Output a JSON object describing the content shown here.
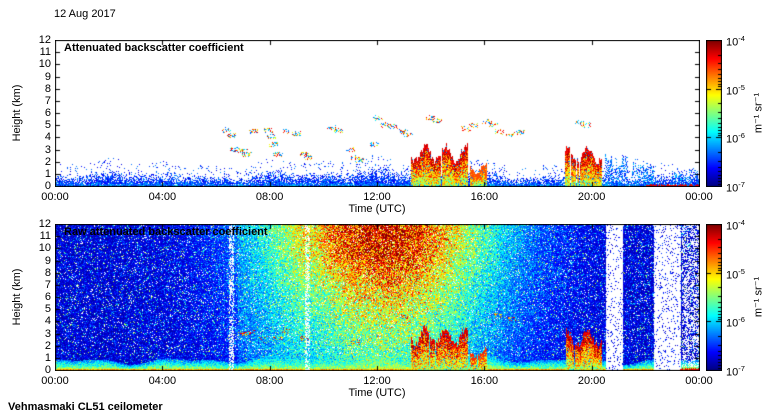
{
  "figure": {
    "date": "12 Aug 2017",
    "credit": "Vehmasmaki CL51 ceilometer",
    "background_color": "#ffffff"
  },
  "colormap": "jet",
  "chart_data": [
    {
      "type": "heatmap",
      "title": "Attenuated backscatter coefficient",
      "xlabel": "Time (UTC)",
      "ylabel": "Height (km)",
      "x_tick_labels": [
        "00:00",
        "04:00",
        "08:00",
        "12:00",
        "16:00",
        "20:00",
        "00:00"
      ],
      "x_range_hours": [
        0,
        24
      ],
      "y_tick_values": [
        0,
        1,
        2,
        3,
        4,
        5,
        6,
        7,
        8,
        9,
        10,
        11,
        12
      ],
      "y_range_km": [
        0,
        12
      ],
      "colorbar": {
        "scale": "log10",
        "tick_exponents": [
          -4,
          -5,
          -6,
          -7
        ],
        "unit": "m⁻¹ sr⁻¹",
        "min": "1e-7",
        "max": "1e-4"
      },
      "features": {
        "boundary_layer": {
          "mean_top_km": 0.9,
          "midday_growth_km": 0.6,
          "early_morning_blob": {
            "center_hour": 2.6,
            "top_km": 1.6
          },
          "typical_log10": -6.4
        },
        "cloud_specks_hour_km": [
          [
            6.4,
            4.6
          ],
          [
            6.55,
            4.15
          ],
          [
            6.7,
            3.0
          ],
          [
            7.0,
            2.9
          ],
          [
            7.15,
            2.6
          ],
          [
            7.4,
            4.5
          ],
          [
            7.95,
            4.6
          ],
          [
            8.05,
            4.05
          ],
          [
            8.15,
            3.4
          ],
          [
            8.3,
            2.6
          ],
          [
            8.55,
            4.5
          ],
          [
            9.0,
            4.3
          ],
          [
            9.3,
            2.6
          ],
          [
            9.45,
            2.35
          ],
          [
            10.3,
            4.8
          ],
          [
            10.55,
            4.6
          ],
          [
            11.0,
            3.0
          ],
          [
            11.2,
            2.3
          ],
          [
            11.35,
            2.1
          ],
          [
            11.9,
            3.4
          ],
          [
            12.05,
            5.6
          ],
          [
            12.3,
            5.0
          ],
          [
            12.6,
            4.9
          ],
          [
            13.0,
            4.45
          ],
          [
            13.15,
            4.2
          ],
          [
            14.0,
            5.6
          ],
          [
            14.25,
            5.35
          ],
          [
            15.3,
            4.7
          ],
          [
            15.6,
            5.0
          ],
          [
            16.1,
            5.3
          ],
          [
            16.35,
            5.1
          ],
          [
            16.55,
            4.45
          ],
          [
            17.0,
            4.2
          ],
          [
            17.35,
            4.4
          ],
          [
            19.55,
            5.2
          ],
          [
            19.8,
            5.0
          ]
        ],
        "precipitation_columns": [
          {
            "hours": [
              13.25,
              15.35
            ],
            "top_km": 3.1,
            "max_log10": -4.1
          },
          {
            "hours": [
              15.45,
              16.05
            ],
            "top_km": 1.7,
            "max_log10": -4.6
          },
          {
            "hours": [
              19.0,
              20.35
            ],
            "top_km": 3.0,
            "max_log10": -4.1
          }
        ],
        "weak_columns": [
          {
            "hours": [
              20.5,
              21.3
            ],
            "top_km": 2.6
          },
          {
            "hours": [
              21.5,
              22.3
            ],
            "top_km": 2.2
          },
          {
            "hours": [
              23.0,
              24.0
            ],
            "top_km": 1.4
          }
        ],
        "surface_high_signal": {
          "hours": [
            22.0,
            24.0
          ],
          "log10": -4.3
        }
      }
    },
    {
      "type": "heatmap",
      "title": "Raw attenuated backscatter coefficient",
      "xlabel": "Time (UTC)",
      "ylabel": "Height (km)",
      "x_tick_labels": [
        "00:00",
        "04:00",
        "08:00",
        "12:00",
        "16:00",
        "20:00",
        "00:00"
      ],
      "x_range_hours": [
        0,
        24
      ],
      "y_tick_values": [
        0,
        1,
        2,
        3,
        4,
        5,
        6,
        7,
        8,
        9,
        10,
        11,
        12
      ],
      "y_range_km": [
        0,
        12
      ],
      "colorbar": {
        "scale": "log10",
        "tick_exponents": [
          -4,
          -5,
          -6,
          -7
        ],
        "unit": "m⁻¹ sr⁻¹",
        "min": "1e-7",
        "max": "1e-4"
      },
      "features": {
        "noise": {
          "base_log10": -6.9,
          "day_center_hour": 12.3,
          "day_sigma_hours": 4.3,
          "max_boost_log10": 3.0
        },
        "band_boost": {
          "hours": [
            6.8,
            9.35
          ],
          "amount_log10": 0.3
        },
        "pale_stripes_hours": [
          6.55,
          9.4
        ],
        "data_gaps_hours": [
          [
            20.5,
            21.15
          ],
          [
            22.3,
            23.3
          ]
        ],
        "sparse_region_after_hour": 23.35,
        "boundary_layer": {
          "mean_top_km": 0.95,
          "typical_log10": -5.3
        },
        "cloud_specks_hour_km": [
          [
            7.0,
            2.95
          ],
          [
            7.3,
            3.1
          ],
          [
            7.8,
            2.6
          ],
          [
            8.3,
            2.6
          ],
          [
            8.6,
            3.2
          ],
          [
            9.3,
            2.6
          ],
          [
            11.2,
            2.3
          ],
          [
            13.0,
            4.4
          ],
          [
            16.5,
            4.5
          ],
          [
            17.0,
            4.2
          ]
        ],
        "precipitation_columns": [
          {
            "hours": [
              13.25,
              15.35
            ],
            "top_km": 3.2,
            "max_log10": -4.05
          },
          {
            "hours": [
              15.45,
              16.05
            ],
            "top_km": 1.7,
            "max_log10": -4.5
          },
          {
            "hours": [
              19.0,
              20.35
            ],
            "top_km": 3.0,
            "max_log10": -4.05
          }
        ],
        "surface_high_signal": {
          "hours": [
            23.3,
            24.0
          ],
          "log10": -4.3
        }
      }
    }
  ]
}
